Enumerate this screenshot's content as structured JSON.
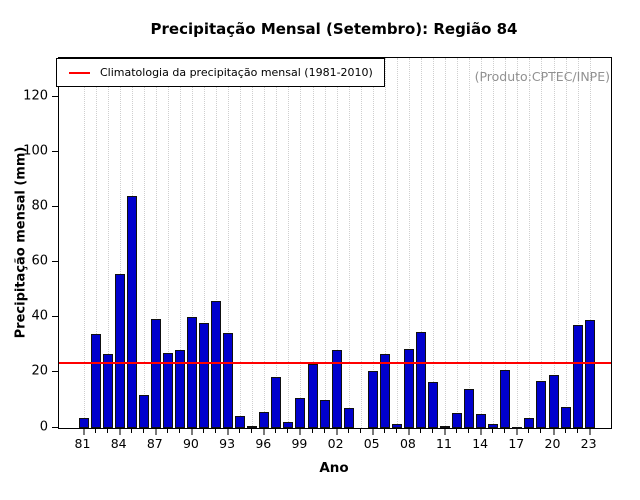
{
  "title": "Precipitação Mensal (Setembro): Região 84",
  "watermark": "(Produto:CPTEC/INPE)",
  "legend": {
    "label": "Climatologia da precipitação mensal (1981-2010)",
    "line_color": "#FF0000"
  },
  "chart_data": {
    "type": "bar",
    "title": "Precipitação Mensal (Setembro): Região 84",
    "xlabel": "Ano",
    "ylabel": "Precipitação mensal (mm)",
    "x": [
      1981,
      1982,
      1983,
      1984,
      1985,
      1986,
      1987,
      1988,
      1989,
      1990,
      1991,
      1992,
      1993,
      1994,
      1995,
      1996,
      1997,
      1998,
      1999,
      2000,
      2001,
      2002,
      2003,
      2004,
      2005,
      2006,
      2007,
      2008,
      2009,
      2010,
      2011,
      2012,
      2013,
      2014,
      2015,
      2016,
      2017,
      2018,
      2019,
      2020,
      2021,
      2022,
      2023
    ],
    "values": [
      3.5,
      34,
      27,
      55.7,
      84,
      11.8,
      39.7,
      27.2,
      28.2,
      40.3,
      38,
      46,
      34.6,
      4.2,
      0.9,
      5.8,
      18.5,
      2.2,
      11,
      23.3,
      10,
      28.2,
      7.4,
      0,
      20.7,
      27,
      1.6,
      28.8,
      35,
      16.8,
      0.7,
      5.4,
      14,
      5,
      1.6,
      21,
      0.4,
      3.5,
      17.1,
      19.4,
      7.6,
      37.5,
      39.1
    ],
    "x_tick_label_years": [
      1981,
      1984,
      1987,
      1990,
      1993,
      1996,
      1999,
      2002,
      2005,
      2008,
      2011,
      2014,
      2017,
      2020,
      2023
    ],
    "x_tick_labels": [
      "81",
      "84",
      "87",
      "90",
      "93",
      "96",
      "99",
      "02",
      "05",
      "08",
      "11",
      "14",
      "17",
      "20",
      "23"
    ],
    "yticks": [
      0,
      20,
      40,
      60,
      80,
      100,
      120
    ],
    "ylim": [
      0,
      134
    ],
    "grid": "vertical-dotted",
    "bar_color": "#0000CD",
    "bar_border": "#101010",
    "reference_line": {
      "value": 23.5,
      "color": "#FF0000",
      "label": "Climatologia da precipitação mensal (1981-2010)"
    },
    "legend_position": "top-left"
  }
}
